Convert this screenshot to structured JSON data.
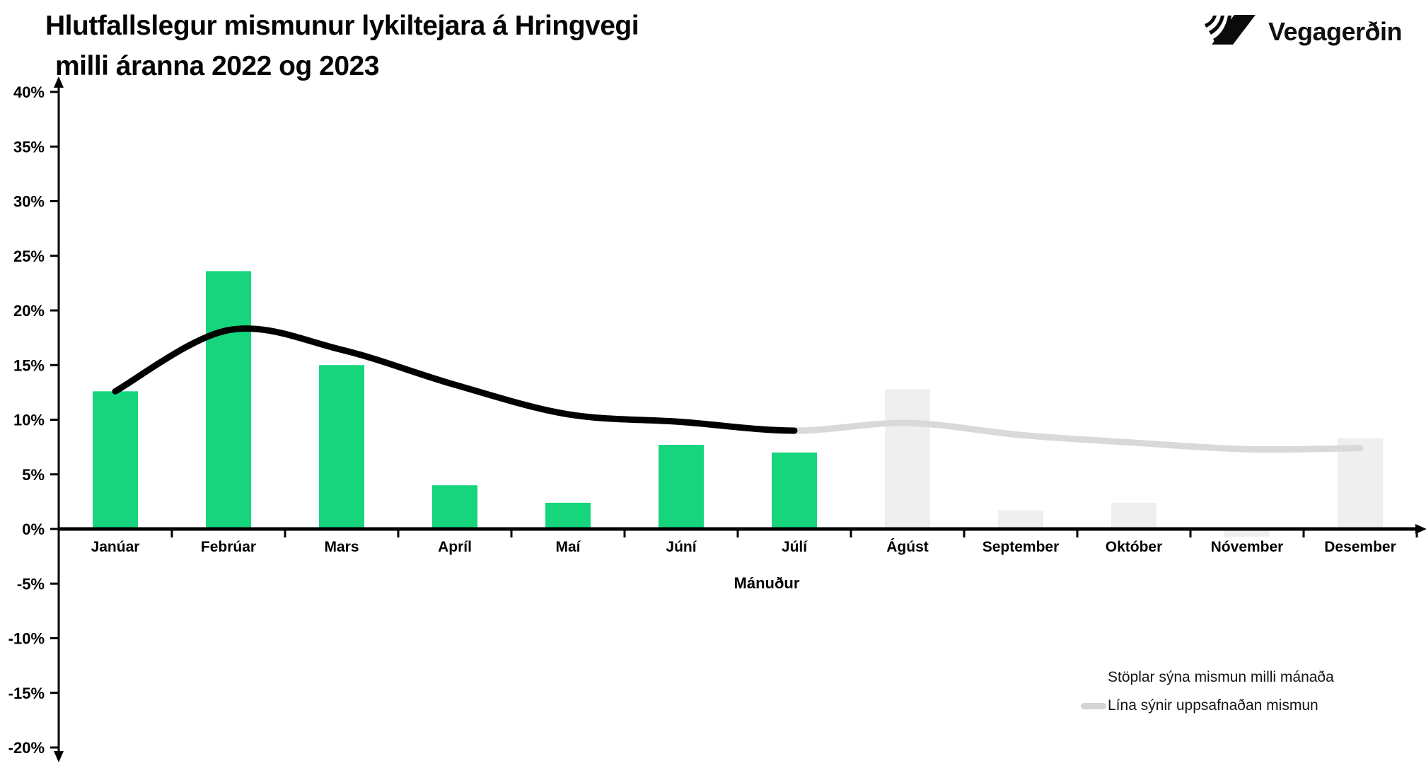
{
  "header": {
    "title_line1": "Hlutfallslegur mismunur lykiltejara á Hringvegi",
    "title_line2": "milli áranna 2022 og 2023",
    "brand": "Vegagerðin"
  },
  "legend": {
    "bars_label": "Stöplar sýna mismun milli mánaða",
    "line_label": "Lína sýnir uppsafnaðan mismun",
    "line_swatch_color": "#d4d4d4"
  },
  "colors": {
    "bar_green": "#17d57d",
    "bar_gray": "#efefef",
    "line_black": "#000000",
    "line_gray": "#d9d9d9",
    "axis": "#000000"
  },
  "chart_data": {
    "type": "bar",
    "subtype": "bar-with-smoothed-line-overlay",
    "title": "Hlutfallslegur mismunur lykiltejara á Hringvegi milli áranna 2022 og 2023",
    "xlabel": "Mánuður",
    "ylabel": "",
    "ylim": [
      -20,
      40
    ],
    "ytick_step": 5,
    "ytick_values": [
      40,
      35,
      30,
      25,
      20,
      15,
      10,
      5,
      0,
      -5,
      -10,
      -15,
      -20
    ],
    "ytick_labels": [
      "40%",
      "35%",
      "30%",
      "25%",
      "20%",
      "15%",
      "10%",
      "5%",
      "0%",
      "-5%",
      "-10%",
      "-15%",
      "-20%"
    ],
    "grid": false,
    "legend_position": "bottom-right",
    "categories": [
      "Janúar",
      "Febrúar",
      "Mars",
      "Apríl",
      "Maí",
      "Júní",
      "Júlí",
      "Ágúst",
      "September",
      "Október",
      "Nóvember",
      "Desember"
    ],
    "series": [
      {
        "name": "Stöplar sýna mismun milli mánaða",
        "type": "bar",
        "unit": "%",
        "values": [
          12.6,
          23.6,
          15.0,
          4.0,
          2.4,
          7.7,
          7.0,
          12.8,
          1.7,
          2.4,
          -0.7,
          8.3
        ],
        "colors": [
          "#17d57d",
          "#17d57d",
          "#17d57d",
          "#17d57d",
          "#17d57d",
          "#17d57d",
          "#17d57d",
          "#efefef",
          "#efefef",
          "#efefef",
          "#efefef",
          "#efefef"
        ]
      },
      {
        "name": "Lína sýnir uppsafnaðan mismun",
        "type": "line",
        "unit": "%",
        "smooth": true,
        "values": [
          12.6,
          18.2,
          16.4,
          13.2,
          10.5,
          9.8,
          9.0,
          9.7,
          8.6,
          7.9,
          7.3,
          7.4
        ],
        "segments": [
          {
            "from": 0,
            "to": 6,
            "color": "#000000"
          },
          {
            "from": 6,
            "to": 11,
            "color": "#d9d9d9"
          }
        ]
      }
    ]
  }
}
